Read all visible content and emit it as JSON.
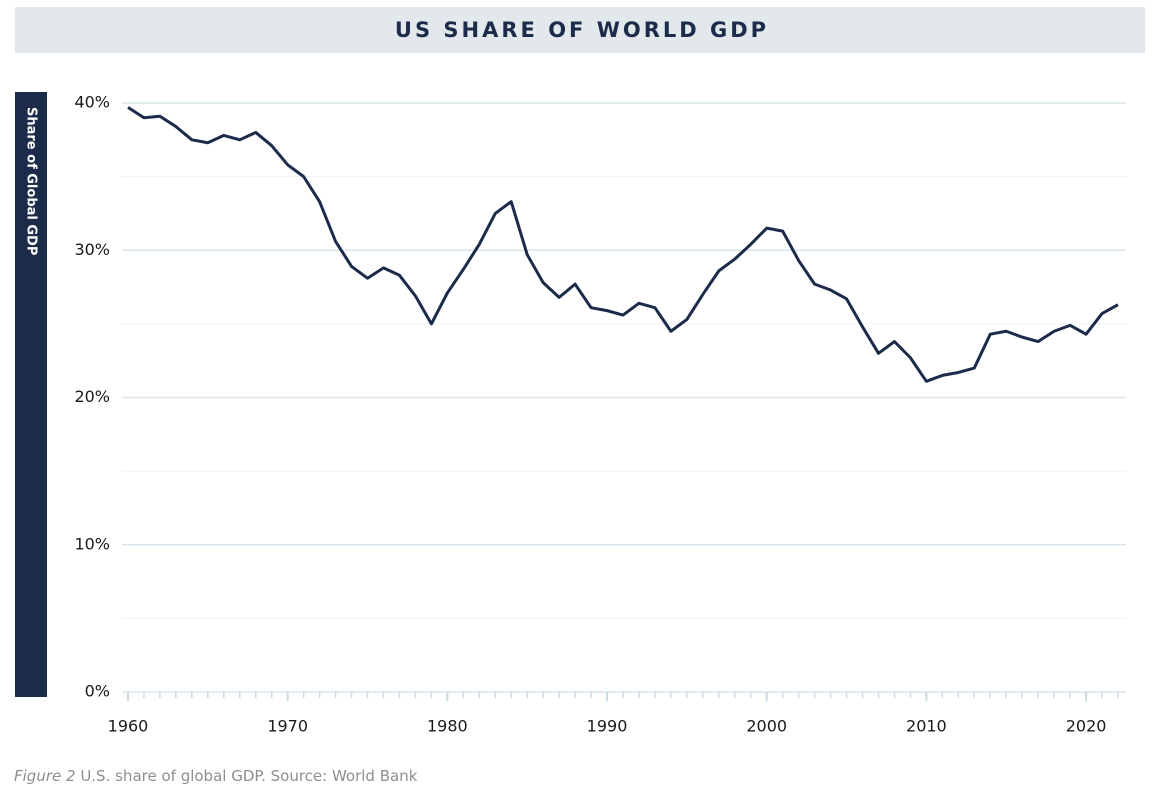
{
  "chart_data": {
    "type": "line",
    "title": "US SHARE OF WORLD GDP",
    "y_label": "Share of Global GDP",
    "caption_label": "Figure 2",
    "caption": "U.S. share of global GDP.  Source: World Bank",
    "x": [
      1960,
      1961,
      1962,
      1963,
      1964,
      1965,
      1966,
      1967,
      1968,
      1969,
      1970,
      1971,
      1972,
      1973,
      1974,
      1975,
      1976,
      1977,
      1978,
      1979,
      1980,
      1981,
      1982,
      1983,
      1984,
      1985,
      1986,
      1987,
      1988,
      1989,
      1990,
      1991,
      1992,
      1993,
      1994,
      1995,
      1996,
      1997,
      1998,
      1999,
      2000,
      2001,
      2002,
      2003,
      2004,
      2005,
      2006,
      2007,
      2008,
      2009,
      2010,
      2011,
      2012,
      2013,
      2014,
      2015,
      2016,
      2017,
      2018,
      2019,
      2020,
      2021,
      2022
    ],
    "series": [
      {
        "name": "US share of world GDP",
        "color": "#1c2b4a",
        "values": [
          39.7,
          39.0,
          39.1,
          38.4,
          37.5,
          37.3,
          37.8,
          37.5,
          38.0,
          37.1,
          35.8,
          35.0,
          33.3,
          30.6,
          28.9,
          28.1,
          28.8,
          28.3,
          26.9,
          25.0,
          27.1,
          28.7,
          30.4,
          32.5,
          33.3,
          29.7,
          27.8,
          26.8,
          27.7,
          26.1,
          25.9,
          25.6,
          26.4,
          26.1,
          24.5,
          25.3,
          27.0,
          28.6,
          29.4,
          30.4,
          31.5,
          31.3,
          29.3,
          27.7,
          27.3,
          26.7,
          24.8,
          23.0,
          23.8,
          22.7,
          21.1,
          21.5,
          21.7,
          22.0,
          24.3,
          24.5,
          24.1,
          23.8,
          24.5,
          24.9,
          24.3,
          25.7,
          26.3
        ]
      }
    ],
    "xlim": [
      1960,
      2022
    ],
    "xticks": [
      1960,
      1970,
      1980,
      1990,
      2000,
      2010,
      2020
    ],
    "ylim": [
      0,
      40
    ],
    "yticks": [
      {
        "value": 0,
        "label": "0%"
      },
      {
        "value": 10,
        "label": "10%"
      },
      {
        "value": 20,
        "label": "20%"
      },
      {
        "value": 30,
        "label": "30%"
      },
      {
        "value": 40,
        "label": "40%"
      }
    ],
    "minor_yticks": [
      5,
      15,
      25,
      35
    ],
    "grid": true
  }
}
